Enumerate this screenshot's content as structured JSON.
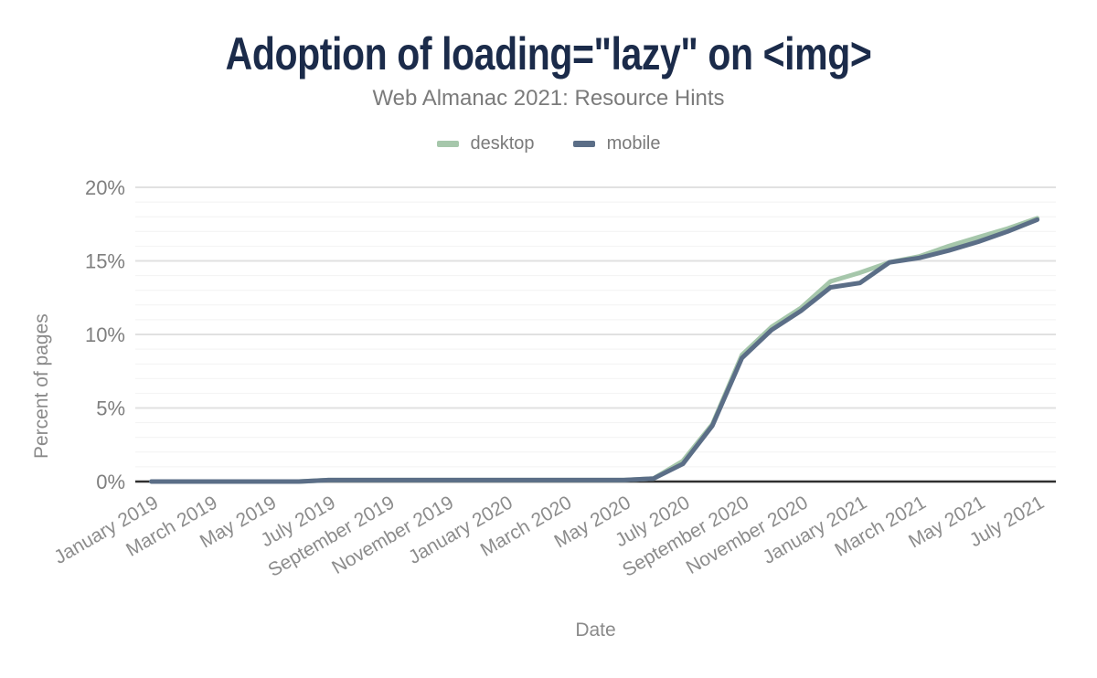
{
  "header": {
    "title": "Adoption of loading=\"lazy\" on <img>",
    "subtitle": "Web Almanac 2021: Resource Hints"
  },
  "colors": {
    "title_text": "#1b2b4a",
    "subtitle_text": "#7b7b7b",
    "tick_text": "#8c8c8c",
    "axis_line": "#2f2f2f",
    "grid_major": "#e1e1e1",
    "grid_minor": "#f2f2f2",
    "desktop": "#a6c7ab",
    "mobile": "#5b6e87"
  },
  "chart_data": {
    "type": "line",
    "title": "Adoption of loading=\"lazy\" on <img>",
    "subtitle": "Web Almanac 2021: Resource Hints",
    "xlabel": "Date",
    "ylabel": "Percent of pages",
    "ylim": [
      0,
      20
    ],
    "grid": {
      "minor_step": 1,
      "major_step": 5,
      "vertical_gridlines": false
    },
    "legend_position": "top",
    "x_tick_every": 2,
    "x_tick_rotation_deg": -30,
    "yticks": [
      {
        "value": 0,
        "label": "0%"
      },
      {
        "value": 5,
        "label": "5%"
      },
      {
        "value": 10,
        "label": "10%"
      },
      {
        "value": 15,
        "label": "15%"
      },
      {
        "value": 20,
        "label": "20%"
      }
    ],
    "x": [
      "January 2019",
      "February 2019",
      "March 2019",
      "April 2019",
      "May 2019",
      "June 2019",
      "July 2019",
      "August 2019",
      "September 2019",
      "October 2019",
      "November 2019",
      "December 2019",
      "January 2020",
      "February 2020",
      "March 2020",
      "April 2020",
      "May 2020",
      "June 2020",
      "July 2020",
      "August 2020",
      "September 2020",
      "October 2020",
      "November 2020",
      "December 2020",
      "January 2021",
      "February 2021",
      "March 2021",
      "April 2021",
      "May 2021",
      "June 2021",
      "July 2021"
    ],
    "series": [
      {
        "name": "desktop",
        "color": "#a6c7ab",
        "values": [
          0.0,
          0.0,
          0.0,
          0.0,
          0.0,
          0.0,
          0.1,
          0.1,
          0.1,
          0.1,
          0.1,
          0.1,
          0.1,
          0.1,
          0.1,
          0.1,
          0.1,
          0.2,
          1.4,
          3.9,
          8.6,
          10.5,
          11.8,
          13.6,
          14.2,
          14.9,
          15.3,
          16.0,
          16.6,
          17.2,
          17.9
        ]
      },
      {
        "name": "mobile",
        "color": "#5b6e87",
        "values": [
          0.0,
          0.0,
          0.0,
          0.0,
          0.0,
          0.0,
          0.1,
          0.1,
          0.1,
          0.1,
          0.1,
          0.1,
          0.1,
          0.1,
          0.1,
          0.1,
          0.1,
          0.2,
          1.2,
          3.8,
          8.4,
          10.3,
          11.6,
          13.2,
          13.5,
          14.9,
          15.2,
          15.7,
          16.3,
          17.0,
          17.8
        ]
      }
    ]
  }
}
